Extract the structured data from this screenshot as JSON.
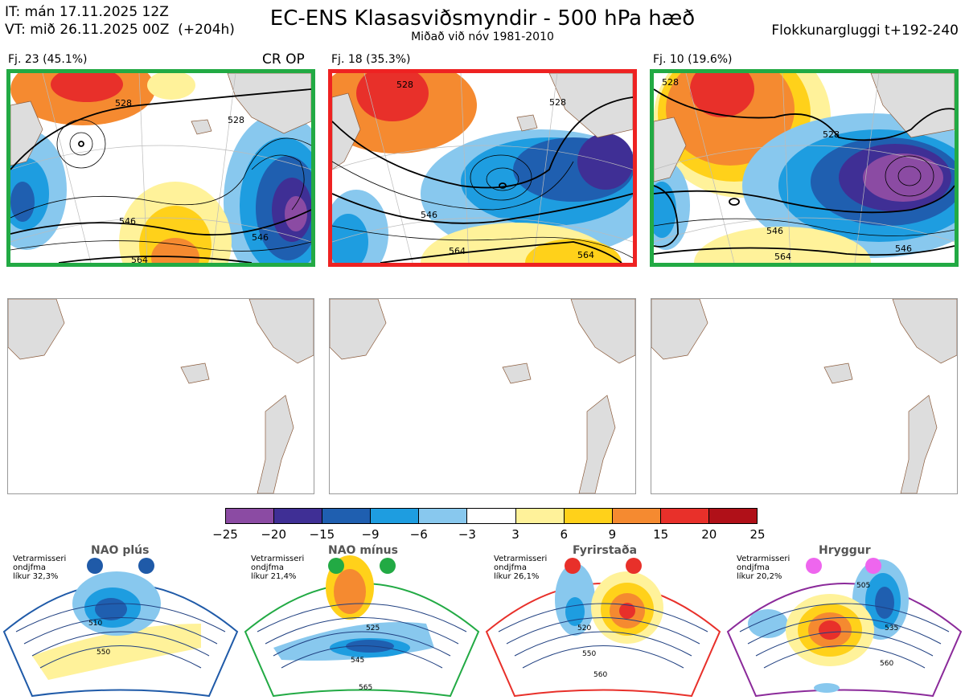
{
  "header": {
    "it_line": "IT: mán 17.11.2025 12Z",
    "vt_line": "VT: mið 26.11.2025 00Z  (+204h)",
    "title": "EC-ENS Klasasviðsmyndir - 500 hPa hæð",
    "subtitle": "Miðað við nóv 1981-2010",
    "window": "Flokkunargluggi t+192-240"
  },
  "clusters": [
    {
      "label": "Fj. 23 (45.1%)",
      "tag": "CR OP",
      "border_color": "#22aa44",
      "contour_labels": [
        "528",
        "528",
        "546",
        "546",
        "564"
      ]
    },
    {
      "label": "Fj. 18 (35.3%)",
      "tag": "",
      "border_color": "#ee2222",
      "contour_labels": [
        "528",
        "528",
        "546",
        "564",
        "564"
      ]
    },
    {
      "label": "Fj. 10 (19.6%)",
      "tag": "",
      "border_color": "#22aa44",
      "contour_labels": [
        "528",
        "528",
        "546",
        "546",
        "564"
      ]
    }
  ],
  "colorbar": {
    "colors": [
      "#8b4ba3",
      "#3f2f95",
      "#1f5fb0",
      "#1e9de0",
      "#88c8ee",
      "#ffffff",
      "#fff29a",
      "#ffd11a",
      "#f58a30",
      "#e8302a",
      "#b01018"
    ],
    "ticks": [
      "−25",
      "−20",
      "−15",
      "−9",
      "−6",
      "−3",
      "3",
      "6",
      "9",
      "15",
      "20",
      "25"
    ]
  },
  "regimes": [
    {
      "name": "NAO plús",
      "note": [
        "Vetrarmisseri",
        "ondjfma",
        "líkur 32,3%"
      ],
      "color": "#1f5aa8",
      "labels": [
        "510",
        "550"
      ]
    },
    {
      "name": "NAO mínus",
      "note": [
        "Vetrarmisseri",
        "ondjfma",
        "líkur 21,4%"
      ],
      "color": "#22aa44",
      "labels": [
        "525",
        "545",
        "565"
      ]
    },
    {
      "name": "Fyrirstaða",
      "note": [
        "Vetrarmisseri",
        "ondjfma",
        "líkur 26,1%"
      ],
      "color": "#e8302a",
      "labels": [
        "520",
        "550",
        "560"
      ]
    },
    {
      "name": "Hryggur",
      "note": [
        "Vetrarmisseri",
        "ondjfma",
        "líkur 20,2%"
      ],
      "color": "#8b2a9a",
      "labels": [
        "505",
        "535",
        "560"
      ]
    }
  ]
}
